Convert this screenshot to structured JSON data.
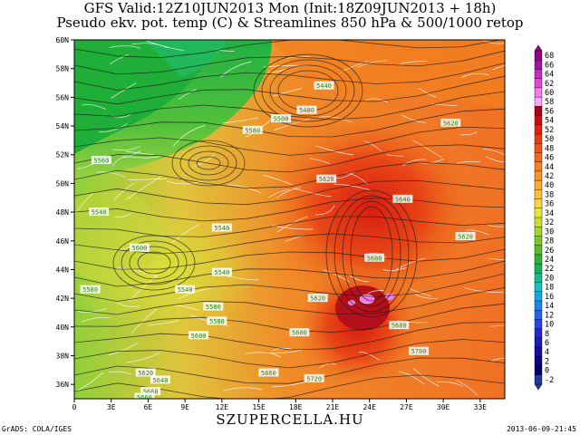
{
  "header": {
    "title_line1": "GFS Valid:12Z10JUN2013 Mon (Init:18Z09JUN2013 + 18h)",
    "title_line2": "Pseudo ekv. pot. temp (C) & Streamlines 850 hPa & 500/1000 retop"
  },
  "map": {
    "lat_labels": [
      "60N",
      "58N",
      "56N",
      "54N",
      "52N",
      "50N",
      "48N",
      "46N",
      "44N",
      "42N",
      "40N",
      "38N",
      "36N"
    ],
    "lon_labels": [
      "0",
      "3E",
      "6E",
      "9E",
      "12E",
      "15E",
      "18E",
      "21E",
      "24E",
      "27E",
      "30E",
      "33E"
    ],
    "contour_labels": [
      {
        "text": "5440",
        "lon": 20.3,
        "lat": 56.8
      },
      {
        "text": "5480",
        "lon": 18.9,
        "lat": 55.1
      },
      {
        "text": "5500",
        "lon": 16.8,
        "lat": 54.5
      },
      {
        "text": "5580",
        "lon": 14.5,
        "lat": 53.7
      },
      {
        "text": "5560",
        "lon": 2.2,
        "lat": 51.6
      },
      {
        "text": "5540",
        "lon": 2.0,
        "lat": 48.0
      },
      {
        "text": "5540",
        "lon": 12.0,
        "lat": 46.9
      },
      {
        "text": "5620",
        "lon": 20.5,
        "lat": 50.3
      },
      {
        "text": "5640",
        "lon": 26.7,
        "lat": 48.9
      },
      {
        "text": "5620",
        "lon": 30.6,
        "lat": 54.2
      },
      {
        "text": "5620",
        "lon": 31.8,
        "lat": 46.3
      },
      {
        "text": "5680",
        "lon": 24.4,
        "lat": 44.8
      },
      {
        "text": "5600",
        "lon": 5.3,
        "lat": 45.5
      },
      {
        "text": "5540",
        "lon": 12.0,
        "lat": 43.8
      },
      {
        "text": "5540",
        "lon": 9.0,
        "lat": 42.6
      },
      {
        "text": "5580",
        "lon": 1.3,
        "lat": 42.6
      },
      {
        "text": "5580",
        "lon": 11.3,
        "lat": 41.4
      },
      {
        "text": "5580",
        "lon": 11.6,
        "lat": 40.4
      },
      {
        "text": "5600",
        "lon": 10.1,
        "lat": 39.4
      },
      {
        "text": "5620",
        "lon": 19.8,
        "lat": 42.0
      },
      {
        "text": "5600",
        "lon": 18.3,
        "lat": 39.6
      },
      {
        "text": "5680",
        "lon": 26.4,
        "lat": 40.1
      },
      {
        "text": "5700",
        "lon": 28.0,
        "lat": 38.3
      },
      {
        "text": "5660",
        "lon": 15.8,
        "lat": 36.8
      },
      {
        "text": "5720",
        "lon": 19.5,
        "lat": 36.4
      },
      {
        "text": "5620",
        "lon": 5.8,
        "lat": 36.8
      },
      {
        "text": "5640",
        "lon": 7.0,
        "lat": 36.3
      },
      {
        "text": "5660",
        "lon": 6.2,
        "lat": 35.5
      },
      {
        "text": "5660",
        "lon": 5.7,
        "lat": 35.1
      }
    ]
  },
  "colorbar": {
    "labels": [
      "68",
      "66",
      "64",
      "62",
      "60",
      "58",
      "56",
      "54",
      "52",
      "50",
      "48",
      "46",
      "44",
      "42",
      "40",
      "38",
      "36",
      "34",
      "32",
      "30",
      "28",
      "26",
      "24",
      "22",
      "20",
      "18",
      "16",
      "14",
      "12",
      "10",
      "8",
      "6",
      "4",
      "2",
      "0",
      "-2"
    ],
    "colors": [
      "#99008c",
      "#a0159f",
      "#c62ac4",
      "#e447d7",
      "#f07ced",
      "#f7a9f2",
      "#ad0018",
      "#c80f0f",
      "#e12313",
      "#eb3914",
      "#f05219",
      "#f5691d",
      "#f57f22",
      "#f79528",
      "#f8ab33",
      "#f9c13d",
      "#f9d645",
      "#e8e63e",
      "#c8dc30",
      "#a6d427",
      "#80c923",
      "#55bd27",
      "#2fae32",
      "#1fb05c",
      "#19b88d",
      "#18c1c1",
      "#1aa6dd",
      "#1f84e6",
      "#2464eb",
      "#2945e9",
      "#2424d6",
      "#1a1ab8",
      "#10109b",
      "#08087c",
      "#03035e",
      "#1d3d9c"
    ]
  },
  "footer": {
    "left": "GrADS: COLA/IGES",
    "center": "SZUPERCELLA.HU",
    "right": "2013-06-09-21:45"
  }
}
